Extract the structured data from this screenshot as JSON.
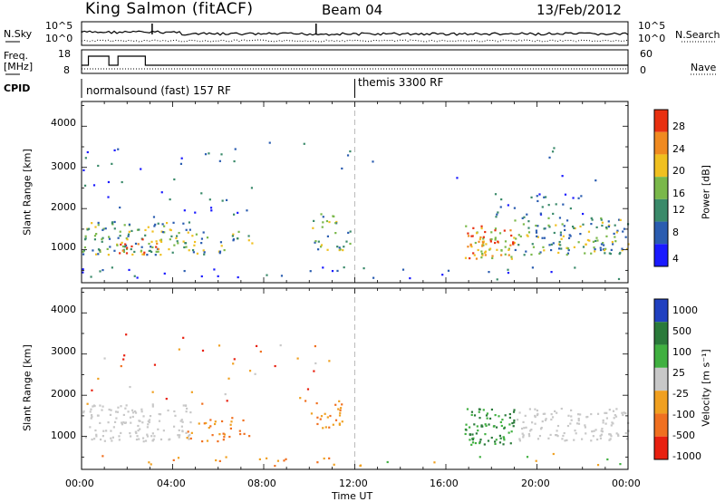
{
  "header": {
    "station": "King Salmon (fitACF)",
    "beam": "Beam 04",
    "date": "13/Feb/2012"
  },
  "left_labels": {
    "nsky": "N.Sky",
    "freq_line1": "Freq.",
    "freq_line2": "[MHz]",
    "cpid": "CPID"
  },
  "right_labels": {
    "nsearch": "N.Search",
    "nave": "Nave"
  },
  "noise_panel": {
    "left_ticks": [
      "10^5",
      "10^0"
    ],
    "right_ticks": [
      "10^5",
      "10^0"
    ]
  },
  "freq_panel": {
    "left_ticks": [
      "18",
      "8"
    ],
    "right_ticks": [
      "60",
      "0"
    ]
  },
  "cpid_panel": {
    "modes": [
      {
        "label": "normalsound (fast) 157 RF",
        "start_hour": 0
      },
      {
        "label": "themis 3300 RF",
        "start_hour": 12
      }
    ]
  },
  "chart_data": [
    {
      "type": "heatmap",
      "title": "",
      "xlabel": "",
      "ylabel": "Slant Range [km]",
      "xlim": [
        0,
        24
      ],
      "ylim": [
        200,
        4600
      ],
      "yticks": [
        1000,
        2000,
        3000,
        4000
      ],
      "colorbar": {
        "label": "Power [dB]",
        "ticks": [
          "4",
          "8",
          "12",
          "16",
          "20",
          "24",
          "28"
        ],
        "colors": [
          "#1a1aff",
          "#2a5cb0",
          "#3a8a6a",
          "#7ab84a",
          "#f0c020",
          "#f08a20",
          "#e83010"
        ]
      }
    },
    {
      "type": "heatmap",
      "title": "",
      "xlabel": "Time UT",
      "ylabel": "Slant Range [km]",
      "xlim": [
        0,
        24
      ],
      "ylim": [
        200,
        4600
      ],
      "yticks": [
        1000,
        2000,
        3000,
        4000
      ],
      "xtick_labels": [
        "00:00",
        "04:00",
        "08:00",
        "12:00",
        "16:00",
        "20:00",
        "00:00"
      ],
      "colorbar": {
        "label": "Velocity [m s⁻¹]",
        "ticks": [
          "1000",
          "500",
          "100",
          "25",
          "-25",
          "-100",
          "-500",
          "-1000"
        ],
        "colors": [
          "#2040c0",
          "#2a7a3a",
          "#40b040",
          "#c8c8c8",
          "#f0a020",
          "#f07020",
          "#e82010"
        ]
      }
    }
  ]
}
